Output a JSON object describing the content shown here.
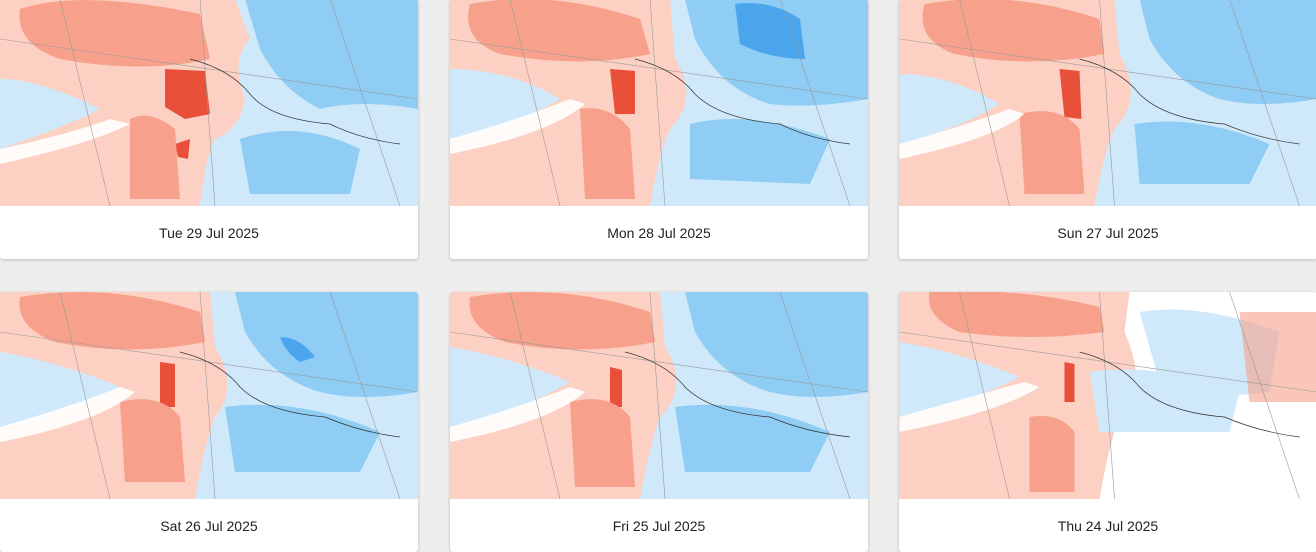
{
  "colors": {
    "page_background": "#eeeeee",
    "warm_light": "#fdd0c4",
    "warm_mid": "#f7a08c",
    "warm_strong": "#e8503a",
    "cool_light": "#cfe9fb",
    "cool_mid": "#8fcdf5",
    "cool_strong": "#4aa5ec",
    "neutral": "#ffffff"
  },
  "cards": [
    {
      "date": "Tue 29 Jul 2025",
      "map_icon": "temperature-anomaly-map"
    },
    {
      "date": "Mon 28 Jul 2025",
      "map_icon": "temperature-anomaly-map"
    },
    {
      "date": "Sun 27 Jul 2025",
      "map_icon": "temperature-anomaly-map"
    },
    {
      "date": "Sat 26 Jul 2025",
      "map_icon": "temperature-anomaly-map"
    },
    {
      "date": "Fri 25 Jul 2025",
      "map_icon": "temperature-anomaly-map"
    },
    {
      "date": "Thu 24 Jul 2025",
      "map_icon": "temperature-anomaly-map"
    }
  ]
}
